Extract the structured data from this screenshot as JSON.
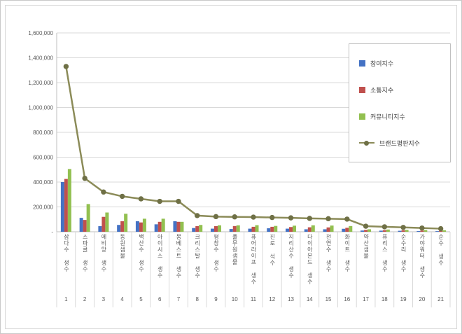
{
  "page": {
    "background": "#ffffff",
    "border_color": "#c9c9c9"
  },
  "legend": {
    "border_color": "#bfbfbf"
  },
  "chart_data": {
    "type": "bar+line",
    "title": "",
    "xlabel": "",
    "ylabel": "",
    "categories": [
      "삼다수 생수",
      "스파클 생수",
      "에비앙 생수",
      "동원샘물",
      "백산수 생수",
      "아이시스 생수",
      "몽베스트 생수",
      "크리스탈 생수",
      "평창수 생수",
      "풀무원샘물",
      "퓨어라이프 생수",
      "진로 석수",
      "지리산수 생수",
      "다이아몬드 생수",
      "천연수 생수",
      "화이트 생수",
      "약산샘물",
      "퓨리스 생수",
      "순수리 생수",
      "가야워터 생수",
      "순수 생수"
    ],
    "ranks": [
      "1",
      "2",
      "3",
      "4",
      "5",
      "6",
      "7",
      "8",
      "9",
      "10",
      "11",
      "12",
      "13",
      "14",
      "15",
      "16",
      "17",
      "18",
      "19",
      "20",
      "21"
    ],
    "series": [
      {
        "name": "참여지수",
        "type": "bar",
        "color": "#4472C4",
        "values": [
          400000,
          112000,
          45000,
          55000,
          85000,
          60000,
          85000,
          30000,
          25000,
          22000,
          25000,
          28000,
          25000,
          20000,
          20000,
          24000,
          10000,
          9000,
          8000,
          6000,
          5000
        ]
      },
      {
        "name": "소통지수",
        "type": "bar",
        "color": "#C0504D",
        "values": [
          425000,
          95000,
          120000,
          85000,
          75000,
          80000,
          80000,
          45000,
          45000,
          46000,
          40000,
          40000,
          38000,
          36000,
          35000,
          32000,
          15000,
          13000,
          12000,
          10000,
          8000
        ]
      },
      {
        "name": "커뮤니티지수",
        "type": "bar",
        "color": "#92C050",
        "values": [
          505000,
          223000,
          155000,
          145000,
          105000,
          105000,
          80000,
          55000,
          52000,
          52000,
          53000,
          47000,
          49000,
          52000,
          50000,
          46000,
          20000,
          18000,
          15000,
          14000,
          12000
        ]
      },
      {
        "name": "브랜드평판지수",
        "type": "line",
        "color": "#8B8B58",
        "marker_color": "#6F7046",
        "values": [
          1330000,
          430000,
          320000,
          285000,
          265000,
          245000,
          245000,
          130000,
          122000,
          120000,
          118000,
          115000,
          112000,
          108000,
          105000,
          102000,
          45000,
          40000,
          35000,
          30000,
          25000
        ]
      }
    ],
    "ylim": [
      0,
      1600000
    ],
    "ytick_step": 200000,
    "ytick_labels": [
      "-",
      "200,000",
      "400,000",
      "600,000",
      "800,000",
      "1,000,000",
      "1,200,000",
      "1,400,000",
      "1,600,000"
    ],
    "grid": true,
    "legend_position": "top-right"
  }
}
